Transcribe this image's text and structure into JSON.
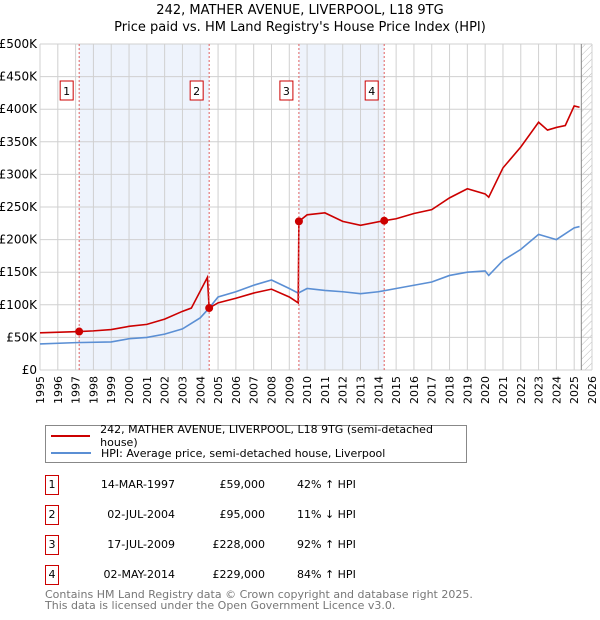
{
  "chart_data": {
    "type": "line",
    "title": "242, MATHER AVENUE, LIVERPOOL, L18 9TG",
    "subtitle": "Price paid vs. HM Land Registry's House Price Index (HPI)",
    "xlim": [
      1995,
      2026
    ],
    "ylim": [
      0,
      500000
    ],
    "x_ticks": [
      "1995",
      "1996",
      "1997",
      "1998",
      "1999",
      "2000",
      "2001",
      "2002",
      "2003",
      "2004",
      "2005",
      "2006",
      "2007",
      "2008",
      "2009",
      "2010",
      "2011",
      "2012",
      "2013",
      "2014",
      "2015",
      "2016",
      "2017",
      "2018",
      "2019",
      "2020",
      "2021",
      "2022",
      "2023",
      "2024",
      "2025",
      "2026"
    ],
    "y_ticks": [
      {
        "v": 0,
        "l": "£0"
      },
      {
        "v": 50000,
        "l": "£50K"
      },
      {
        "v": 100000,
        "l": "£100K"
      },
      {
        "v": 150000,
        "l": "£150K"
      },
      {
        "v": 200000,
        "l": "£200K"
      },
      {
        "v": 250000,
        "l": "£250K"
      },
      {
        "v": 300000,
        "l": "£300K"
      },
      {
        "v": 350000,
        "l": "£350K"
      },
      {
        "v": 400000,
        "l": "£400K"
      },
      {
        "v": 450000,
        "l": "£450K"
      },
      {
        "v": 500000,
        "l": "£500K"
      }
    ],
    "shaded_ranges": [
      [
        1997.2,
        2004.5
      ],
      [
        2009.54,
        2014.33
      ]
    ],
    "forecast_from": 2025.4,
    "series": [
      {
        "name": "242, MATHER AVENUE, LIVERPOOL, L18 9TG (semi-detached house)",
        "color": "#cc0000",
        "points": [
          [
            1995,
            57000
          ],
          [
            1997.2,
            59000
          ],
          [
            1998,
            60000
          ],
          [
            1999,
            62000
          ],
          [
            2000,
            67000
          ],
          [
            2001,
            70000
          ],
          [
            2002,
            78000
          ],
          [
            2003,
            90000
          ],
          [
            2003.5,
            95000
          ],
          [
            2004.4,
            142000
          ],
          [
            2004.5,
            95000
          ],
          [
            2005,
            103000
          ],
          [
            2006,
            110000
          ],
          [
            2007,
            118000
          ],
          [
            2008,
            124000
          ],
          [
            2009,
            112000
          ],
          [
            2009.5,
            103000
          ],
          [
            2009.54,
            228000
          ],
          [
            2010,
            238000
          ],
          [
            2011,
            241000
          ],
          [
            2012,
            228000
          ],
          [
            2013,
            222000
          ],
          [
            2014.33,
            229000
          ],
          [
            2015,
            232000
          ],
          [
            2016,
            240000
          ],
          [
            2017,
            246000
          ],
          [
            2018,
            264000
          ],
          [
            2019,
            278000
          ],
          [
            2020,
            270000
          ],
          [
            2020.2,
            265000
          ],
          [
            2021,
            310000
          ],
          [
            2022,
            342000
          ],
          [
            2023,
            380000
          ],
          [
            2023.5,
            368000
          ],
          [
            2024,
            372000
          ],
          [
            2024.5,
            375000
          ],
          [
            2025,
            405000
          ],
          [
            2025.3,
            403000
          ]
        ]
      },
      {
        "name": "HPI: Average price, semi-detached house, Liverpool",
        "color": "#5b8fd4",
        "points": [
          [
            1995,
            40000
          ],
          [
            1997,
            42000
          ],
          [
            1999,
            43000
          ],
          [
            2000,
            48000
          ],
          [
            2001,
            50000
          ],
          [
            2002,
            55000
          ],
          [
            2003,
            63000
          ],
          [
            2004,
            80000
          ],
          [
            2004.5,
            95000
          ],
          [
            2005,
            112000
          ],
          [
            2006,
            120000
          ],
          [
            2007,
            130000
          ],
          [
            2008,
            138000
          ],
          [
            2009,
            125000
          ],
          [
            2009.5,
            118000
          ],
          [
            2010,
            125000
          ],
          [
            2011,
            122000
          ],
          [
            2012,
            120000
          ],
          [
            2013,
            117000
          ],
          [
            2014,
            120000
          ],
          [
            2015,
            125000
          ],
          [
            2016,
            130000
          ],
          [
            2017,
            135000
          ],
          [
            2018,
            145000
          ],
          [
            2019,
            150000
          ],
          [
            2020,
            152000
          ],
          [
            2020.2,
            145000
          ],
          [
            2021,
            168000
          ],
          [
            2022,
            185000
          ],
          [
            2023,
            208000
          ],
          [
            2024,
            200000
          ],
          [
            2025,
            218000
          ],
          [
            2025.3,
            220000
          ]
        ]
      }
    ],
    "sales": [
      {
        "n": "1",
        "x": 1997.2,
        "y": 59000
      },
      {
        "n": "2",
        "x": 2004.5,
        "y": 95000
      },
      {
        "n": "3",
        "x": 2009.54,
        "y": 228000
      },
      {
        "n": "4",
        "x": 2014.33,
        "y": 229000
      }
    ]
  },
  "legend": {
    "property": "242, MATHER AVENUE, LIVERPOOL, L18 9TG (semi-detached house)",
    "hpi": "HPI: Average price, semi-detached house, Liverpool"
  },
  "table": [
    {
      "n": "1",
      "date": "14-MAR-1997",
      "price": "£59,000",
      "hpi": "42% ↑ HPI"
    },
    {
      "n": "2",
      "date": "02-JUL-2004",
      "price": "£95,000",
      "hpi": "11% ↓ HPI"
    },
    {
      "n": "3",
      "date": "17-JUL-2009",
      "price": "£228,000",
      "hpi": "92% ↑ HPI"
    },
    {
      "n": "4",
      "date": "02-MAY-2014",
      "price": "£229,000",
      "hpi": "84% ↑ HPI"
    }
  ],
  "footer": {
    "line1": "Contains HM Land Registry data © Crown copyright and database right 2025.",
    "line2": "This data is licensed under the Open Government Licence v3.0."
  }
}
